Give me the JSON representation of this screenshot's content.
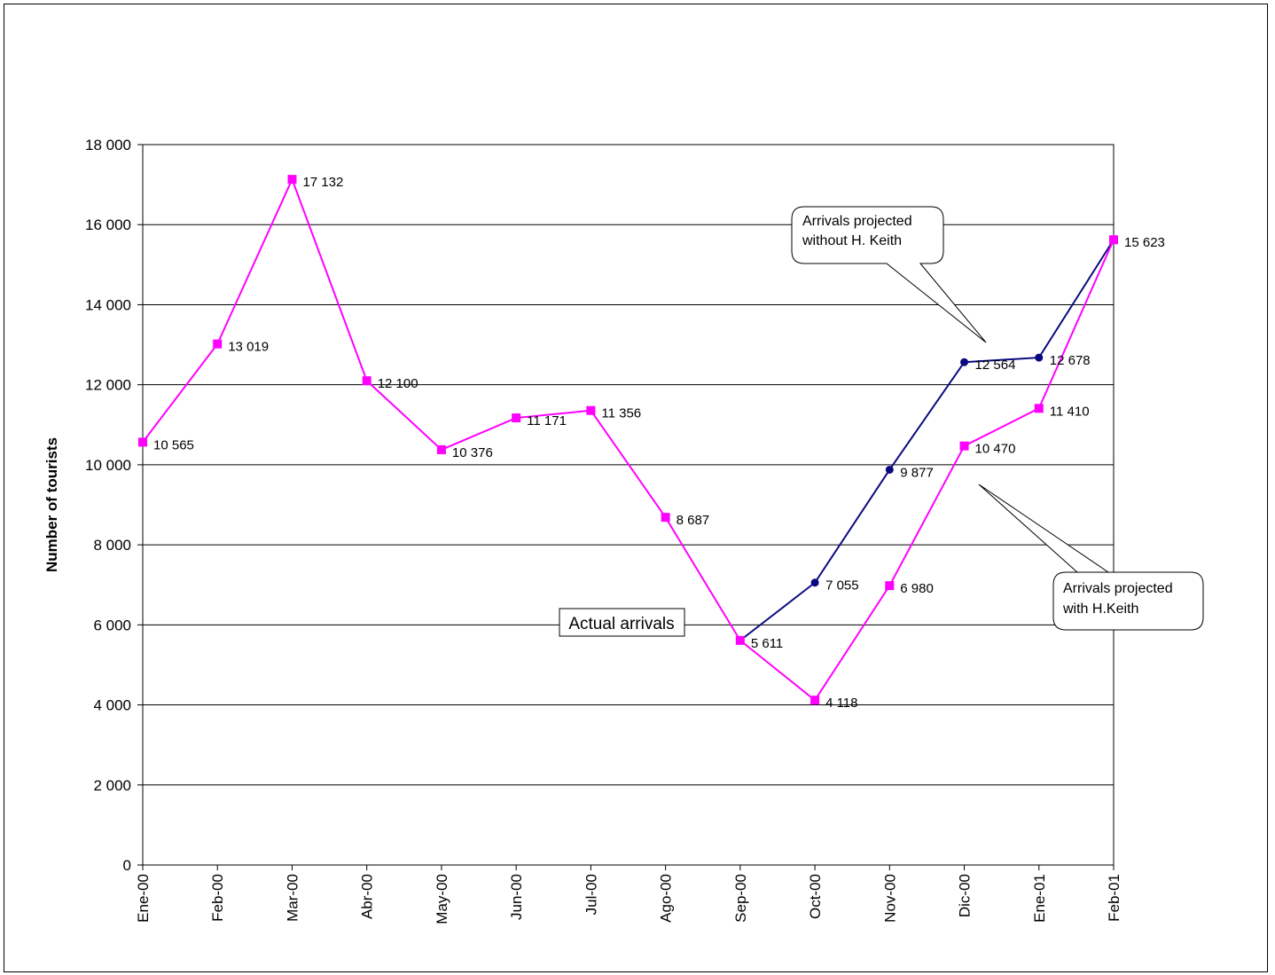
{
  "chart_data": {
    "type": "line",
    "ylabel": "Number of tourists",
    "ylim": [
      0,
      18000
    ],
    "y_ticks": [
      0,
      2000,
      4000,
      6000,
      8000,
      10000,
      12000,
      14000,
      16000,
      18000
    ],
    "y_tick_labels": [
      "0",
      "2 000",
      "4 000",
      "6 000",
      "8 000",
      "10 000",
      "12 000",
      "14 000",
      "16 000",
      "18 000"
    ],
    "categories": [
      "Ene-00",
      "Feb-00",
      "Mar-00",
      "Abr-00",
      "May-00",
      "Jun-00",
      "Jul-00",
      "Ago-00",
      "Sep-00",
      "Oct-00",
      "Nov-00",
      "Dic-00",
      "Ene-01",
      "Feb-01"
    ],
    "grid": true,
    "series": [
      {
        "color": "#0a0a80",
        "marker": "circle",
        "values": [
          null,
          null,
          null,
          null,
          null,
          null,
          null,
          null,
          5611,
          7055,
          9877,
          12564,
          12678,
          15623
        ],
        "labels": [
          "",
          "",
          "",
          "",
          "",
          "",
          "",
          "",
          "",
          "7 055",
          "9 877",
          "12 564",
          "12 678",
          ""
        ]
      },
      {
        "color": "#ff00ff",
        "marker": "square",
        "values": [
          10565,
          13019,
          17132,
          12100,
          10376,
          11171,
          11356,
          8687,
          5611,
          4118,
          6980,
          10470,
          11410,
          15623
        ],
        "labels": [
          "10 565",
          "13 019",
          "17 132",
          "12 100",
          "10 376",
          "11 171",
          "11 356",
          "8 687",
          "5 611",
          "4 118",
          "6 980",
          "10 470",
          "11 410",
          "15 623"
        ]
      }
    ],
    "annotations": {
      "actual": "Actual arrivals",
      "without_line1": "Arrivals projected",
      "without_line2": "without H. Keith",
      "with_line1": "Arrivals projected",
      "with_line2": "with H.Keith"
    }
  }
}
